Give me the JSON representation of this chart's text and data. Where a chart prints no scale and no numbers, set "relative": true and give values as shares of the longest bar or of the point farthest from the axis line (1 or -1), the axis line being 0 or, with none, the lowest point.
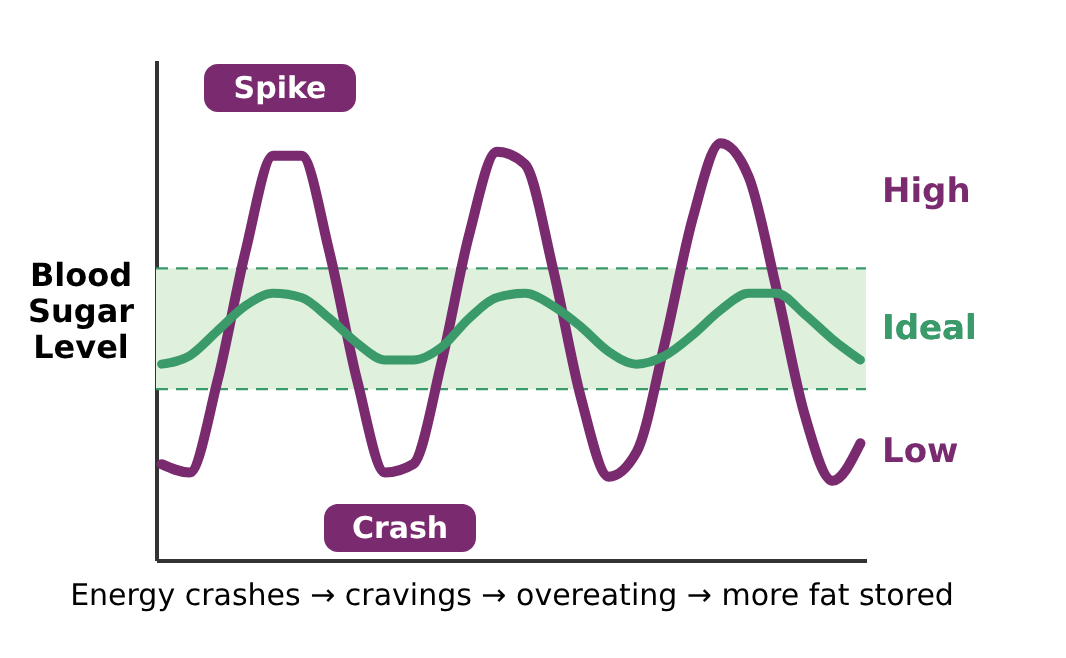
{
  "chart_data": {
    "type": "line",
    "relative": true,
    "xlabel": "Energy crashes → cravings → overeating → more fat stored",
    "ylabel": "Blood Sugar Level",
    "categories": [
      null,
      null,
      null,
      null,
      null,
      null,
      null,
      null,
      null,
      null,
      null,
      null,
      null,
      null,
      null,
      null,
      null,
      null,
      null,
      null,
      null,
      null,
      null,
      null,
      null,
      null
    ],
    "series": [
      {
        "color": "#7a2a6e",
        "values": [
          0.23,
          0.21,
          0.43,
          0.74,
          0.97,
          0.97,
          0.74,
          0.43,
          0.21,
          0.23,
          0.47,
          0.78,
          0.98,
          0.95,
          0.7,
          0.39,
          0.2,
          0.26,
          0.52,
          0.82,
          1.0,
          0.92,
          0.65,
          0.35,
          0.19,
          0.28
        ]
      },
      {
        "color": "#3a9a6a",
        "values": [
          0.47,
          0.49,
          0.55,
          0.61,
          0.64,
          0.63,
          0.58,
          0.52,
          0.48,
          0.48,
          0.51,
          0.58,
          0.63,
          0.64,
          0.61,
          0.56,
          0.5,
          0.47,
          0.49,
          0.54,
          0.6,
          0.64,
          0.64,
          0.59,
          0.53,
          0.48
        ]
      }
    ],
    "bands": [
      {
        "axis": "y",
        "from": 0.41,
        "to": 0.7,
        "label": "Ideal",
        "color": "#dff0dc"
      }
    ],
    "ref_lines": [
      {
        "axis": "y",
        "value": 0.41,
        "color": "#3a9a6a",
        "line_style": "dashed"
      },
      {
        "axis": "y",
        "value": 0.7,
        "color": "#3a9a6a",
        "line_style": "dashed"
      }
    ],
    "annotations": [
      "Spike",
      "Crash",
      "High",
      "Low"
    ],
    "grid": false,
    "tick_labels": false,
    "line_style": "solid"
  }
}
